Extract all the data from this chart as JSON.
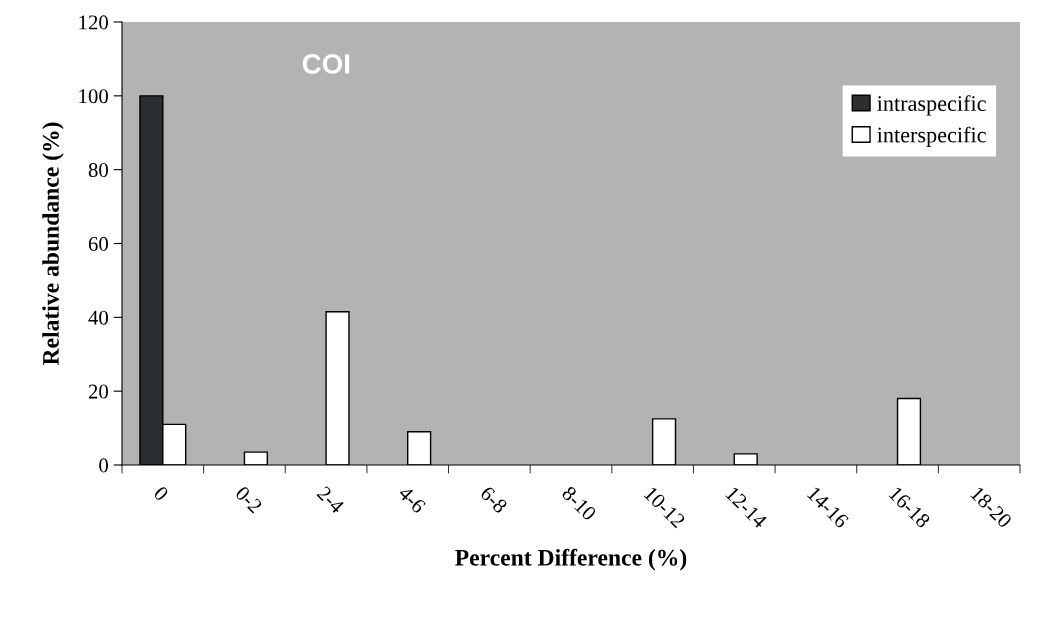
{
  "chart_data": {
    "type": "bar",
    "xlabel": "Percent Difference (%)",
    "ylabel": "Relative abundance (%)",
    "categories": [
      "0",
      "0-2",
      "2-4",
      "4-6",
      "6-8",
      "8-10",
      "10-12",
      "12-14",
      "14-16",
      "16-18",
      "18-20"
    ],
    "series": [
      {
        "name": "intraspecific",
        "color": "#2b2e30",
        "values": [
          100,
          null,
          null,
          null,
          null,
          null,
          null,
          null,
          null,
          null,
          null
        ]
      },
      {
        "name": "interspecific",
        "color": "#ffffff",
        "values": [
          11,
          3.5,
          41.5,
          9,
          null,
          null,
          12.5,
          3,
          null,
          18,
          null
        ]
      }
    ],
    "annotations": [
      "COI"
    ],
    "ylim": [
      0,
      120
    ],
    "yticks": [
      0,
      20,
      40,
      60,
      80,
      100,
      120
    ],
    "grid": false,
    "legend": "top right"
  }
}
